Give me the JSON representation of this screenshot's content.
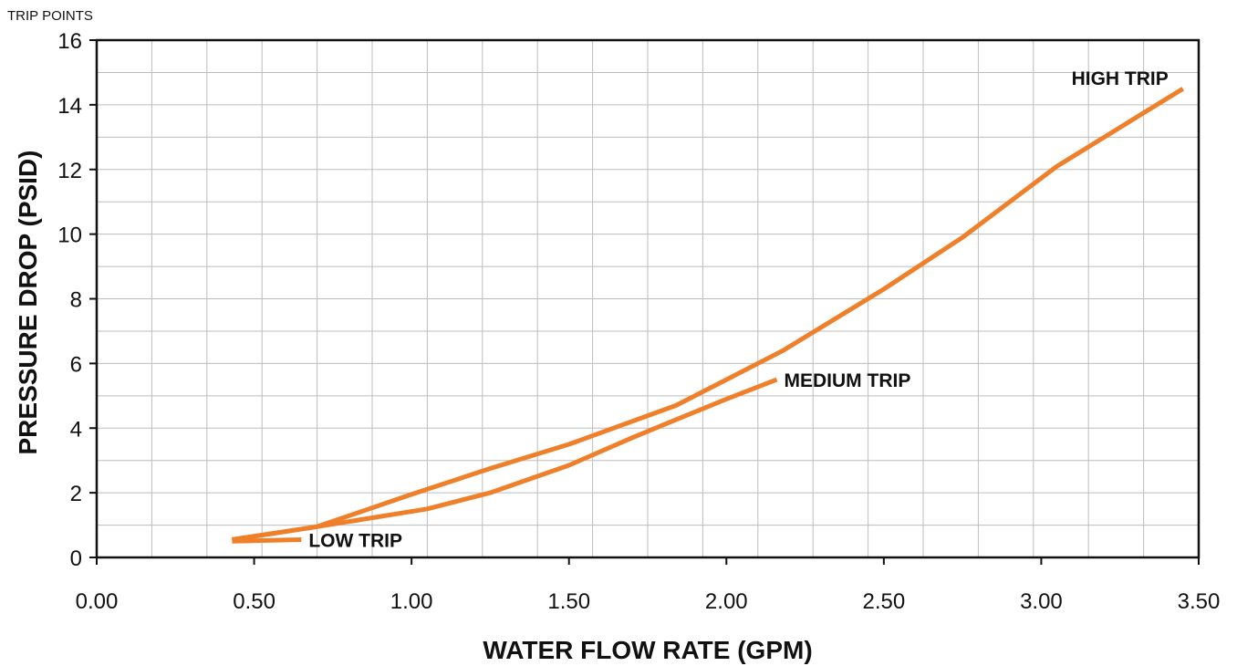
{
  "chart_data": {
    "type": "line",
    "title": "TRIP POINTS",
    "xlabel": "WATER FLOW RATE (GPM)",
    "ylabel": "PRESSURE DROP (PSID)",
    "xlim": [
      0,
      3.5
    ],
    "ylim": [
      0,
      16
    ],
    "x_ticks": [
      "0.00",
      "0.50",
      "1.00",
      "1.50",
      "2.00",
      "2.50",
      "3.00",
      "3.50"
    ],
    "y_ticks": [
      "0",
      "2",
      "4",
      "6",
      "8",
      "10",
      "12",
      "14",
      "16"
    ],
    "grid": true,
    "line_color": "#f07f2a",
    "series": [
      {
        "name": "HIGH TRIP",
        "x": [
          0.43,
          0.7,
          1.0,
          1.25,
          1.5,
          1.84,
          2.0,
          2.18,
          2.5,
          2.75,
          3.05,
          3.25,
          3.45
        ],
        "y": [
          0.55,
          0.95,
          1.95,
          2.75,
          3.5,
          4.7,
          5.5,
          6.4,
          8.3,
          9.9,
          12.1,
          13.3,
          14.5
        ]
      },
      {
        "name": "MEDIUM TRIP",
        "x": [
          0.43,
          0.7,
          1.05,
          1.25,
          1.5,
          1.7,
          1.85,
          2.0,
          2.16
        ],
        "y": [
          0.55,
          0.95,
          1.5,
          2.0,
          2.85,
          3.7,
          4.3,
          4.9,
          5.5
        ]
      },
      {
        "name": "LOW TRIP",
        "x": [
          0.43,
          0.65
        ],
        "y": [
          0.5,
          0.55
        ]
      }
    ]
  }
}
